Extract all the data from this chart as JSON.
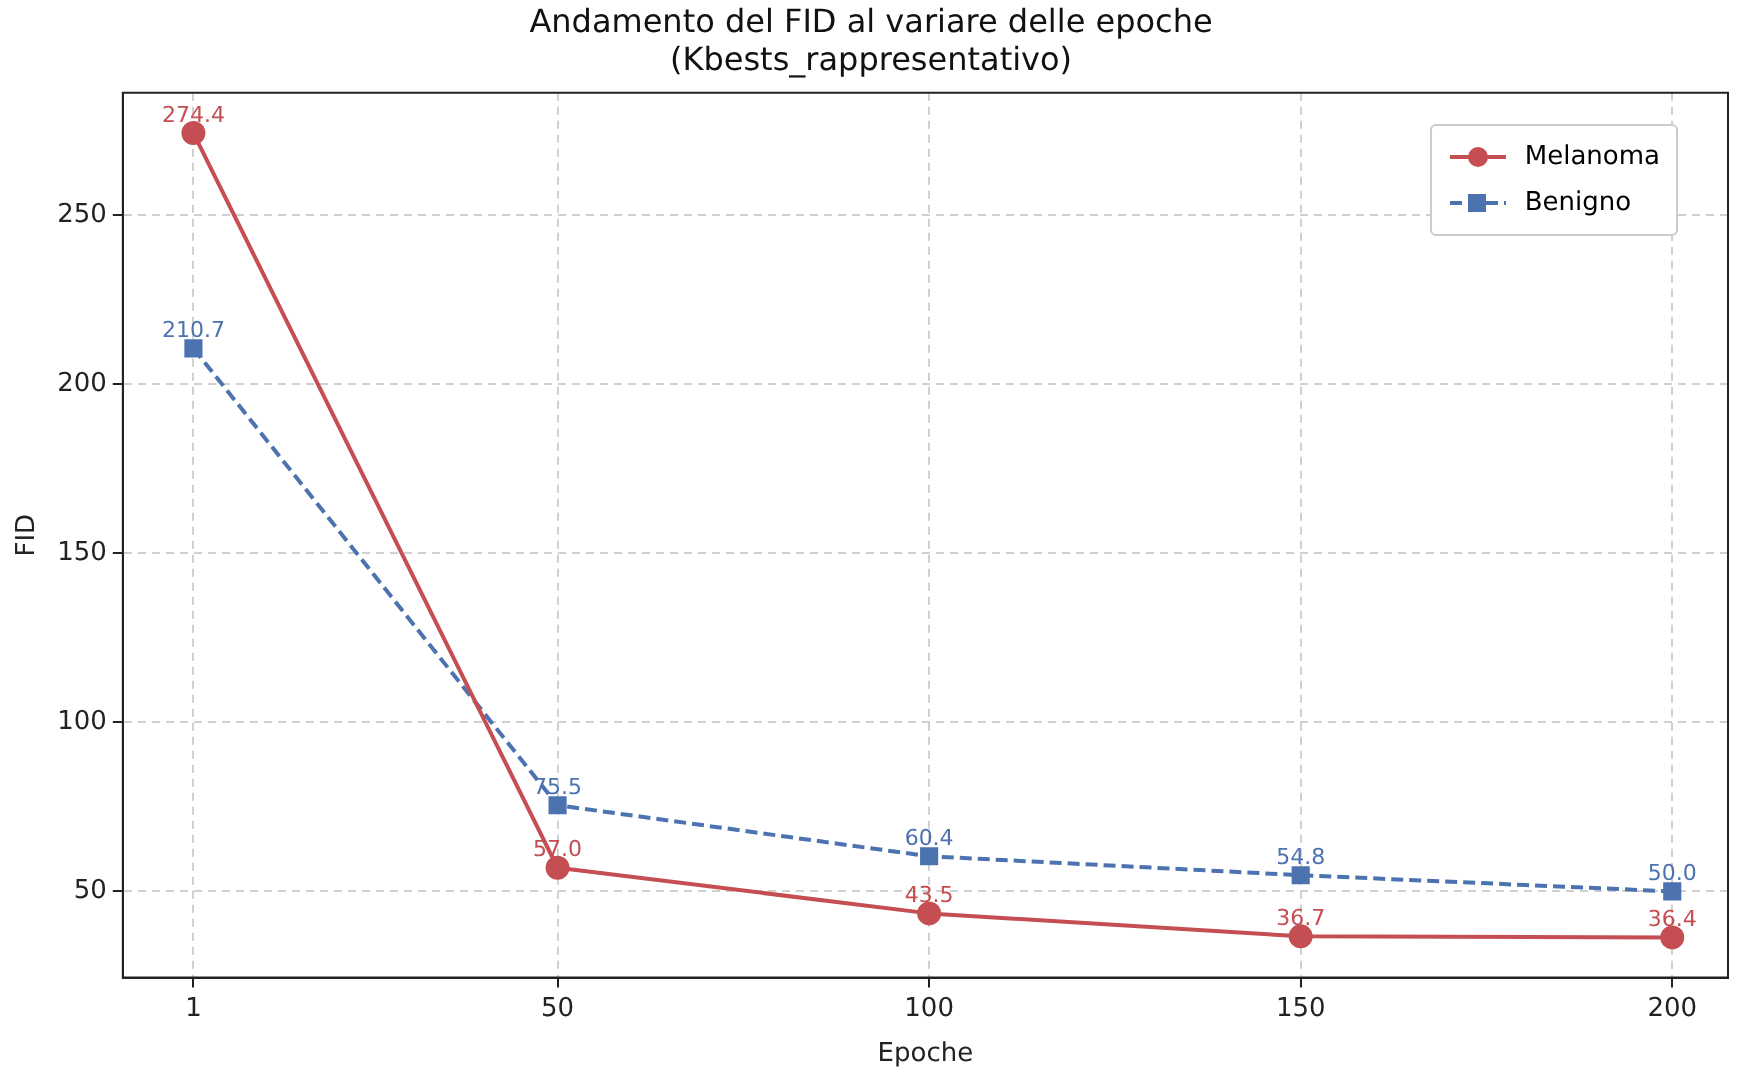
{
  "chart_data": {
    "type": "line",
    "title": "Andamento del FID al variare delle epoche\n(Kbests_rappresentativo)",
    "xlabel": "Epoche",
    "ylabel": "FID",
    "x": [
      1,
      50,
      100,
      150,
      200
    ],
    "series": [
      {
        "name": "Melanoma",
        "color": "#c44e52",
        "values": [
          274.4,
          57.0,
          43.5,
          36.7,
          36.4
        ],
        "value_labels": [
          "274.4",
          "57.0",
          "43.5",
          "36.7",
          "36.4"
        ],
        "marker": "circle",
        "line_style": "solid"
      },
      {
        "name": "Benigno",
        "color": "#4c72b0",
        "values": [
          210.7,
          75.5,
          60.4,
          54.8,
          50.0
        ],
        "value_labels": [
          "210.7",
          "75.5",
          "60.4",
          "54.8",
          "50.0"
        ],
        "marker": "square",
        "line_style": "dashed"
      }
    ],
    "xlim": [
      -8.5,
      207.5
    ],
    "xticks": [
      1,
      50,
      100,
      150,
      200
    ],
    "ylim": [
      24.5,
      286.3
    ],
    "yticks": [
      50,
      100,
      150,
      200,
      250
    ],
    "grid": true,
    "legend": "top right"
  }
}
